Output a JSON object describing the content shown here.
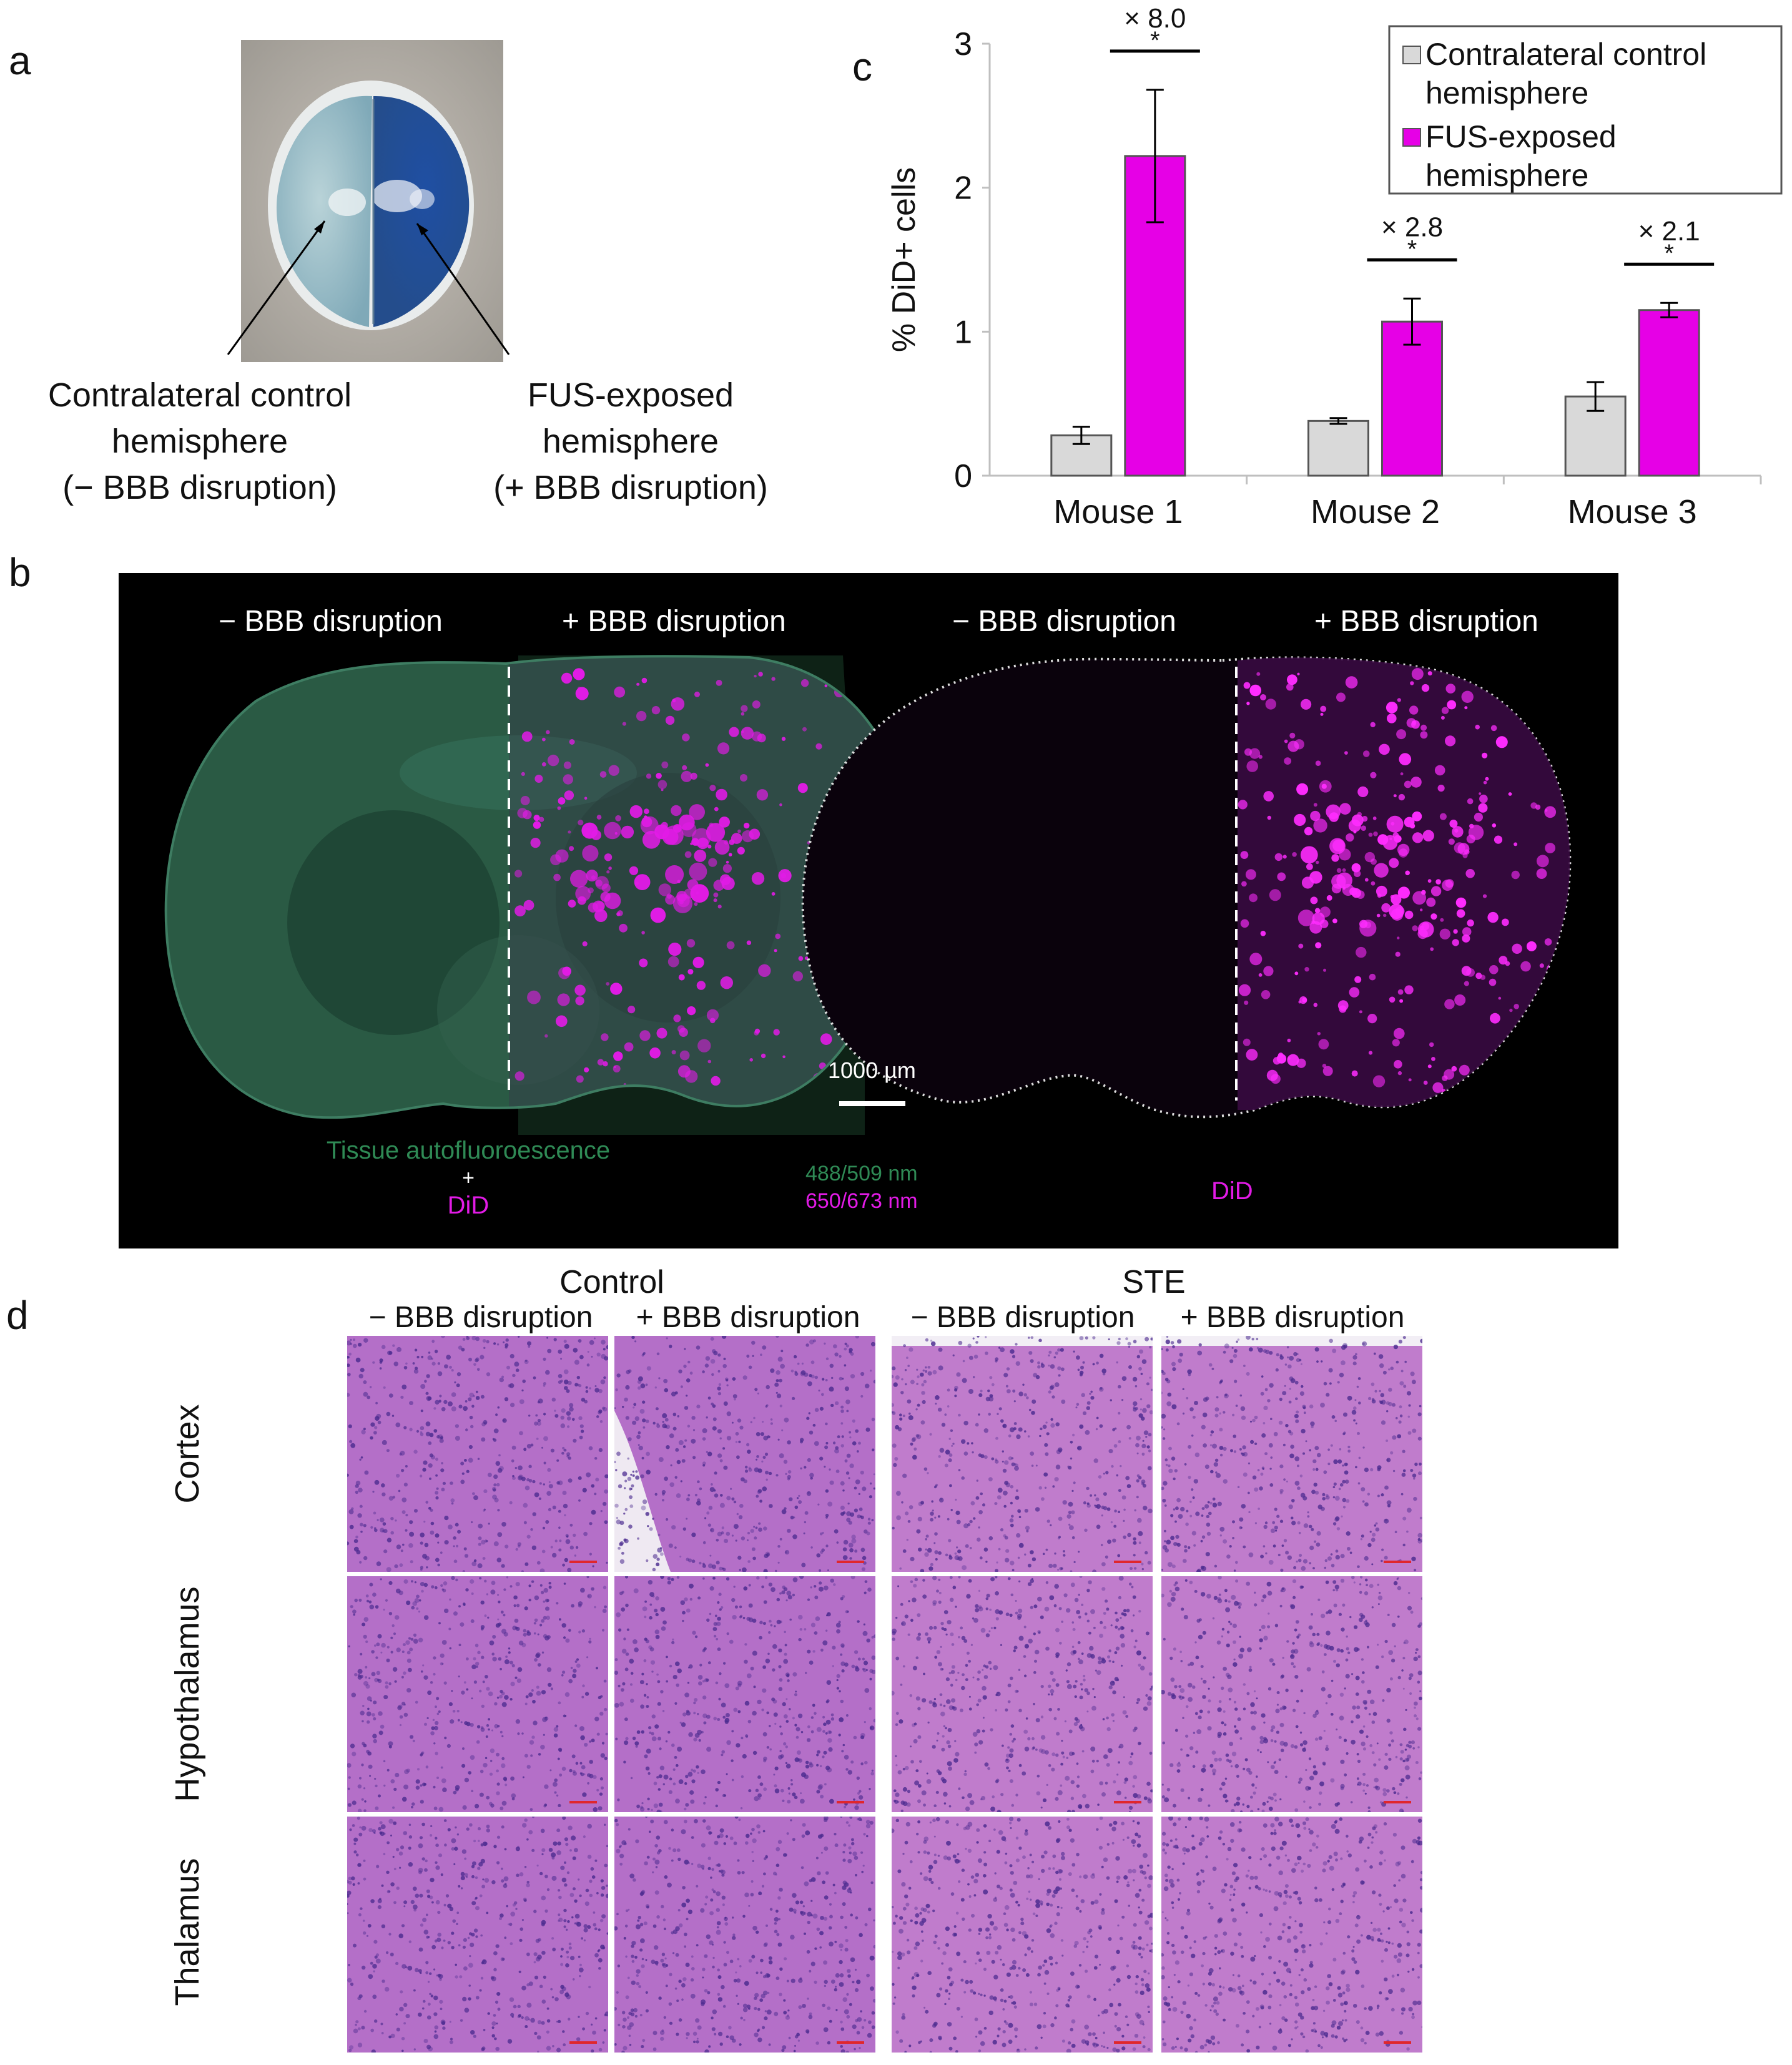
{
  "panels": {
    "a": {
      "label": "a",
      "left_caption": [
        "Contralateral control",
        "hemisphere",
        "(− BBB disruption)"
      ],
      "right_caption": [
        "FUS-exposed",
        "hemisphere",
        "(+ BBB disruption)"
      ]
    },
    "b": {
      "label": "b",
      "left_image": {
        "neg_label": "− BBB disruption",
        "pos_label": "+ BBB disruption",
        "legend_line1": "Tissue autofluoroescence",
        "legend_plus": "+",
        "legend_line2": "DiD"
      },
      "right_image": {
        "neg_label": "− BBB disruption",
        "pos_label": "+ BBB disruption",
        "legend": "DiD"
      },
      "scale_bar": "1000 µm",
      "wavelength_green": "488/509 nm",
      "wavelength_magenta": "650/673 nm",
      "colors": {
        "green": "#2f8a55",
        "magenta": "#e21be6"
      }
    },
    "c": {
      "label": "c"
    },
    "d": {
      "label": "d",
      "groups": [
        "Control",
        "STE"
      ],
      "columns": [
        "− BBB disruption",
        "+ BBB disruption",
        "− BBB disruption",
        "+ BBB disruption"
      ],
      "rows": [
        "Cortex",
        "Hypothalamus",
        "Thalamus"
      ]
    }
  },
  "chart_data": {
    "type": "bar",
    "categories": [
      "Mouse 1",
      "Mouse 2",
      "Mouse 3"
    ],
    "ylabel": "% DiD+ cells",
    "ylim": [
      0,
      3
    ],
    "yticks": [
      0,
      1,
      2,
      3
    ],
    "legend_position": "top-right",
    "series": [
      {
        "name": "Contralateral control hemisphere",
        "legend_lines": [
          "Contralateral control",
          "hemisphere"
        ],
        "color": "#d9d9d9",
        "values": [
          0.28,
          0.38,
          0.55
        ],
        "errors": [
          0.06,
          0.02,
          0.1
        ]
      },
      {
        "name": "FUS-exposed hemisphere",
        "legend_lines": [
          "FUS-exposed",
          "hemisphere"
        ],
        "color": "#e600e6",
        "values": [
          2.22,
          1.07,
          1.15
        ],
        "errors": [
          0.46,
          0.16,
          0.05
        ]
      }
    ],
    "annotations": [
      {
        "category": "Mouse 1",
        "fold": "× 8.0",
        "sig": "*"
      },
      {
        "category": "Mouse 2",
        "fold": "× 2.8",
        "sig": "*"
      },
      {
        "category": "Mouse 3",
        "fold": "× 2.1",
        "sig": "*"
      }
    ]
  }
}
